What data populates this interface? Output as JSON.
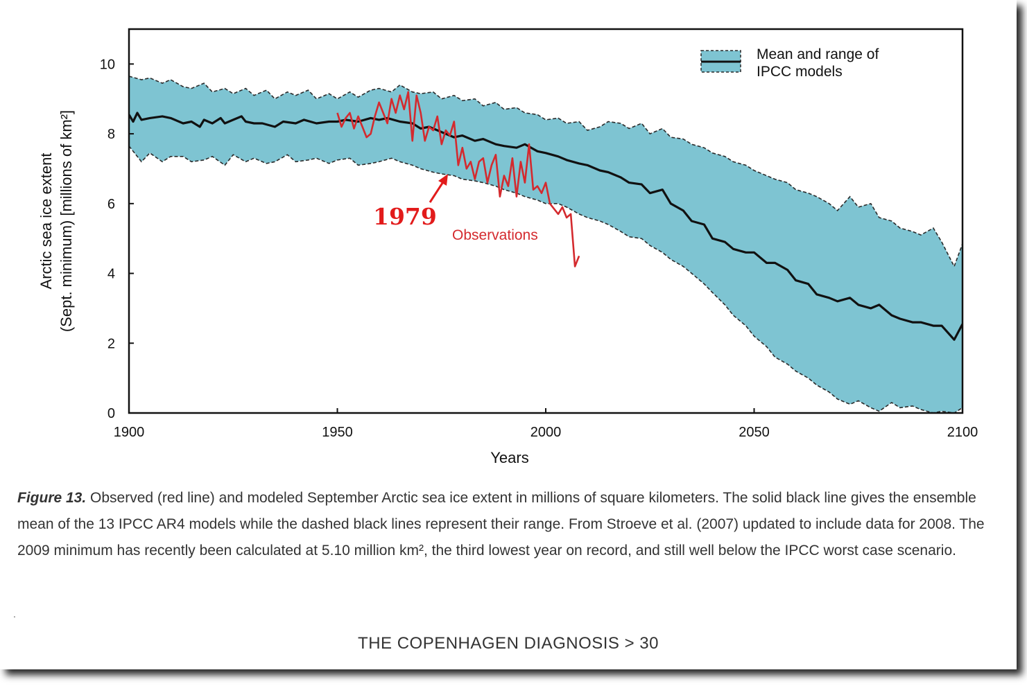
{
  "chart_data": {
    "type": "area",
    "xlabel": "Years",
    "ylabel_line1": "Arctic sea ice extent",
    "ylabel_line2": "(Sept. minimum) [millions of km²]",
    "xlim": [
      1900,
      2100
    ],
    "ylim": [
      0,
      11
    ],
    "xticks": [
      1900,
      1950,
      2000,
      2050,
      2100
    ],
    "yticks": [
      0,
      2,
      4,
      6,
      8,
      10
    ],
    "grid": false,
    "legend": {
      "position": "top-right",
      "line1": "Mean and range of",
      "line2": "IPCC models"
    },
    "colors": {
      "band_fill": "#7ec4d2",
      "band_edge": "#2a2a2a",
      "mean_line": "#111111",
      "observations": "#d42a2e",
      "annotation": "#e21b1b"
    },
    "model_mean": {
      "x": [
        1900,
        1901,
        1902,
        1903,
        1905,
        1908,
        1910,
        1913,
        1915,
        1917,
        1918,
        1920,
        1922,
        1923,
        1925,
        1927,
        1928,
        1930,
        1932,
        1935,
        1937,
        1940,
        1942,
        1945,
        1948,
        1950,
        1952,
        1955,
        1958,
        1960,
        1962,
        1965,
        1968,
        1970,
        1972,
        1975,
        1978,
        1980,
        1983,
        1985,
        1988,
        1990,
        1993,
        1995,
        1998,
        2000,
        2003,
        2005,
        2008,
        2010,
        2013,
        2015,
        2018,
        2020,
        2023,
        2025,
        2028,
        2030,
        2033,
        2035,
        2038,
        2040,
        2043,
        2045,
        2048,
        2050,
        2053,
        2055,
        2058,
        2060,
        2063,
        2065,
        2068,
        2070,
        2073,
        2075,
        2078,
        2080,
        2083,
        2085,
        2088,
        2090,
        2093,
        2095,
        2098,
        2100
      ],
      "y": [
        8.55,
        8.35,
        8.6,
        8.4,
        8.45,
        8.5,
        8.45,
        8.3,
        8.35,
        8.2,
        8.4,
        8.3,
        8.45,
        8.3,
        8.4,
        8.5,
        8.35,
        8.3,
        8.3,
        8.2,
        8.35,
        8.3,
        8.4,
        8.3,
        8.35,
        8.35,
        8.4,
        8.35,
        8.45,
        8.4,
        8.45,
        8.35,
        8.3,
        8.15,
        8.2,
        8.05,
        7.9,
        7.95,
        7.8,
        7.85,
        7.7,
        7.65,
        7.6,
        7.7,
        7.5,
        7.45,
        7.35,
        7.25,
        7.15,
        7.1,
        6.95,
        6.9,
        6.75,
        6.6,
        6.55,
        6.3,
        6.4,
        6.0,
        5.8,
        5.5,
        5.4,
        5.0,
        4.9,
        4.7,
        4.6,
        4.6,
        4.3,
        4.3,
        4.1,
        3.8,
        3.7,
        3.4,
        3.3,
        3.2,
        3.3,
        3.1,
        3.0,
        3.1,
        2.8,
        2.7,
        2.6,
        2.6,
        2.5,
        2.5,
        2.1,
        2.55
      ]
    },
    "model_max": {
      "x": [
        1900,
        1903,
        1905,
        1908,
        1910,
        1913,
        1915,
        1918,
        1920,
        1923,
        1925,
        1928,
        1930,
        1933,
        1935,
        1938,
        1940,
        1943,
        1945,
        1948,
        1950,
        1953,
        1955,
        1958,
        1960,
        1963,
        1965,
        1968,
        1970,
        1973,
        1975,
        1978,
        1980,
        1983,
        1985,
        1988,
        1990,
        1993,
        1995,
        1998,
        2000,
        2003,
        2005,
        2008,
        2010,
        2013,
        2015,
        2018,
        2020,
        2023,
        2025,
        2028,
        2030,
        2033,
        2035,
        2038,
        2040,
        2043,
        2045,
        2048,
        2050,
        2053,
        2055,
        2058,
        2060,
        2063,
        2065,
        2068,
        2070,
        2073,
        2075,
        2078,
        2080,
        2083,
        2085,
        2088,
        2090,
        2093,
        2095,
        2098,
        2100
      ],
      "y": [
        9.65,
        9.55,
        9.6,
        9.45,
        9.55,
        9.35,
        9.3,
        9.45,
        9.2,
        9.3,
        9.15,
        9.3,
        9.1,
        9.25,
        9.0,
        9.2,
        9.1,
        9.25,
        9.0,
        9.15,
        9.0,
        9.2,
        9.05,
        9.25,
        9.3,
        9.2,
        9.4,
        9.2,
        9.15,
        9.2,
        9.0,
        9.1,
        8.95,
        9.0,
        8.8,
        8.9,
        8.7,
        8.75,
        8.6,
        8.55,
        8.4,
        8.45,
        8.3,
        8.35,
        8.1,
        8.2,
        8.35,
        8.3,
        8.15,
        8.3,
        8.0,
        8.15,
        7.9,
        7.85,
        7.7,
        7.6,
        7.45,
        7.35,
        7.2,
        7.1,
        6.95,
        6.8,
        6.7,
        6.6,
        6.4,
        6.3,
        6.2,
        6.0,
        5.8,
        6.2,
        5.9,
        6.0,
        5.6,
        5.5,
        5.3,
        5.2,
        5.1,
        5.3,
        4.9,
        4.2,
        4.85
      ]
    },
    "model_min": {
      "x": [
        1900,
        1903,
        1905,
        1908,
        1910,
        1913,
        1915,
        1918,
        1920,
        1923,
        1925,
        1928,
        1930,
        1933,
        1935,
        1938,
        1940,
        1943,
        1945,
        1948,
        1950,
        1953,
        1955,
        1958,
        1960,
        1963,
        1965,
        1968,
        1970,
        1973,
        1975,
        1978,
        1980,
        1983,
        1985,
        1988,
        1990,
        1993,
        1995,
        1998,
        2000,
        2003,
        2005,
        2008,
        2010,
        2013,
        2015,
        2018,
        2020,
        2023,
        2025,
        2028,
        2030,
        2033,
        2035,
        2038,
        2040,
        2043,
        2045,
        2048,
        2050,
        2053,
        2055,
        2058,
        2060,
        2063,
        2065,
        2068,
        2070,
        2073,
        2075,
        2078,
        2080,
        2083,
        2085,
        2088,
        2090,
        2093,
        2095,
        2098,
        2100
      ],
      "y": [
        7.65,
        7.2,
        7.45,
        7.2,
        7.35,
        7.35,
        7.2,
        7.25,
        7.35,
        7.1,
        7.4,
        7.2,
        7.3,
        7.15,
        7.2,
        7.4,
        7.2,
        7.25,
        7.3,
        7.15,
        7.25,
        7.3,
        7.1,
        7.15,
        7.2,
        7.3,
        7.2,
        7.1,
        7.0,
        6.9,
        6.85,
        6.8,
        6.7,
        6.65,
        6.6,
        6.5,
        6.4,
        6.3,
        6.2,
        6.1,
        6.0,
        6.0,
        5.9,
        5.7,
        5.6,
        5.5,
        5.4,
        5.2,
        5.05,
        5.0,
        4.8,
        4.6,
        4.4,
        4.2,
        4.0,
        3.7,
        3.45,
        3.1,
        2.8,
        2.5,
        2.2,
        1.9,
        1.6,
        1.4,
        1.2,
        1.0,
        0.8,
        0.6,
        0.4,
        0.25,
        0.35,
        0.15,
        0.05,
        0.3,
        0.15,
        0.2,
        0.1,
        0.0,
        0.05,
        0.0,
        0.15
      ]
    },
    "observations": {
      "name": "Observations",
      "x": [
        1950,
        1951,
        1952,
        1953,
        1954,
        1955,
        1956,
        1957,
        1958,
        1959,
        1960,
        1961,
        1962,
        1963,
        1964,
        1965,
        1966,
        1967,
        1968,
        1969,
        1970,
        1971,
        1972,
        1973,
        1974,
        1975,
        1976,
        1977,
        1978,
        1979,
        1980,
        1981,
        1982,
        1983,
        1984,
        1985,
        1986,
        1987,
        1988,
        1989,
        1990,
        1991,
        1992,
        1993,
        1994,
        1995,
        1996,
        1997,
        1998,
        1999,
        2000,
        2001,
        2002,
        2003,
        2004,
        2005,
        2006,
        2007,
        2008
      ],
      "y": [
        8.6,
        8.2,
        8.45,
        8.6,
        8.15,
        8.5,
        8.2,
        7.9,
        8.0,
        8.5,
        8.9,
        8.6,
        8.3,
        9.0,
        8.6,
        9.1,
        8.7,
        9.2,
        7.8,
        9.1,
        8.6,
        7.8,
        8.2,
        8.1,
        8.5,
        7.7,
        8.1,
        7.95,
        8.35,
        7.1,
        7.6,
        7.0,
        7.2,
        6.7,
        7.2,
        7.3,
        6.6,
        7.1,
        7.4,
        6.2,
        6.8,
        6.5,
        7.3,
        6.2,
        7.2,
        6.6,
        7.7,
        6.4,
        6.5,
        6.3,
        6.6,
        6.0,
        5.85,
        5.7,
        5.9,
        5.6,
        5.7,
        4.2,
        4.5
      ]
    },
    "annotation_year": "1979",
    "observations_label": "Observations"
  },
  "caption": {
    "label": "Figure 13.",
    "text": " Observed (red line) and modeled September Arctic sea ice extent in millions of square kilometers. The solid black line gives the ensemble mean of the 13 IPCC AR4 models while the dashed black lines represent their range. From Stroeve et al. (2007) updated to include data for 2008. The 2009 minimum has recently been calculated at 5.10 million km², the third lowest year on record, and still well below the IPCC worst case scenario."
  },
  "dot": ".",
  "footer": "THE COPENHAGEN DIAGNOSIS > 30"
}
